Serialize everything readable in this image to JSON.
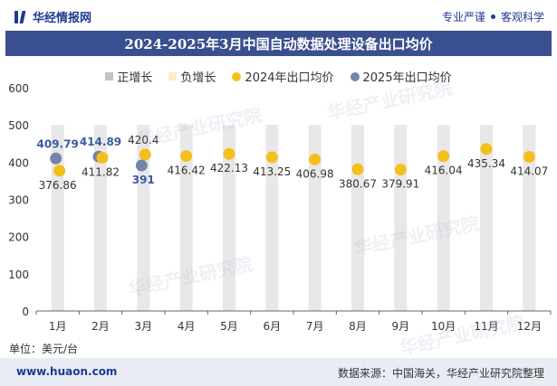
{
  "header": {
    "brand": "华经情报网",
    "tag_left": "专业严谨",
    "tag_right": "客观科学"
  },
  "watermark_text": "华经产业研究院",
  "footer": {
    "unit": "单位：美元/台",
    "website": "www.huaon.com",
    "source": "数据来源：中国海关，华经产业研究院整理"
  },
  "colors": {
    "title_bar": "#3a4f8f",
    "brand": "#1f3a93",
    "series_2024": "#f5bf1b",
    "series_2025": "#7484aa",
    "bar_bg": "#e8e8e8",
    "label_2025": "#3b5aa6"
  },
  "chart_data": {
    "type": "scatter",
    "title": "2024-2025年3月中国自动数据处理设备出口均价",
    "legend": [
      "正增长",
      "负增长",
      "2024年出口均价",
      "2025年出口均价"
    ],
    "legend_position": "top",
    "categories": [
      "1月",
      "2月",
      "3月",
      "4月",
      "5月",
      "6月",
      "7月",
      "8月",
      "9月",
      "10月",
      "11月",
      "12月"
    ],
    "ylim": [
      0,
      600
    ],
    "yticks": [
      0,
      100,
      200,
      300,
      400,
      500,
      600
    ],
    "grid": false,
    "series": [
      {
        "name": "2024年出口均价",
        "values": [
          376.86,
          411.82,
          420.4,
          416.42,
          422.13,
          413.25,
          406.98,
          380.67,
          379.91,
          416.04,
          435.34,
          414.07
        ],
        "labels": [
          "376.86",
          "411.82",
          "420.4",
          "416.42",
          "422.13",
          "413.25",
          "406.98",
          "380.67",
          "379.91",
          "416.04",
          "435.34",
          "414.07"
        ]
      },
      {
        "name": "2025年出口均价",
        "values": [
          409.79,
          414.89,
          391,
          null,
          null,
          null,
          null,
          null,
          null,
          null,
          null,
          null
        ],
        "labels": [
          "409.79",
          "414.89",
          "391",
          "",
          "",
          "",
          "",
          "",
          "",
          "",
          "",
          ""
        ]
      }
    ]
  }
}
